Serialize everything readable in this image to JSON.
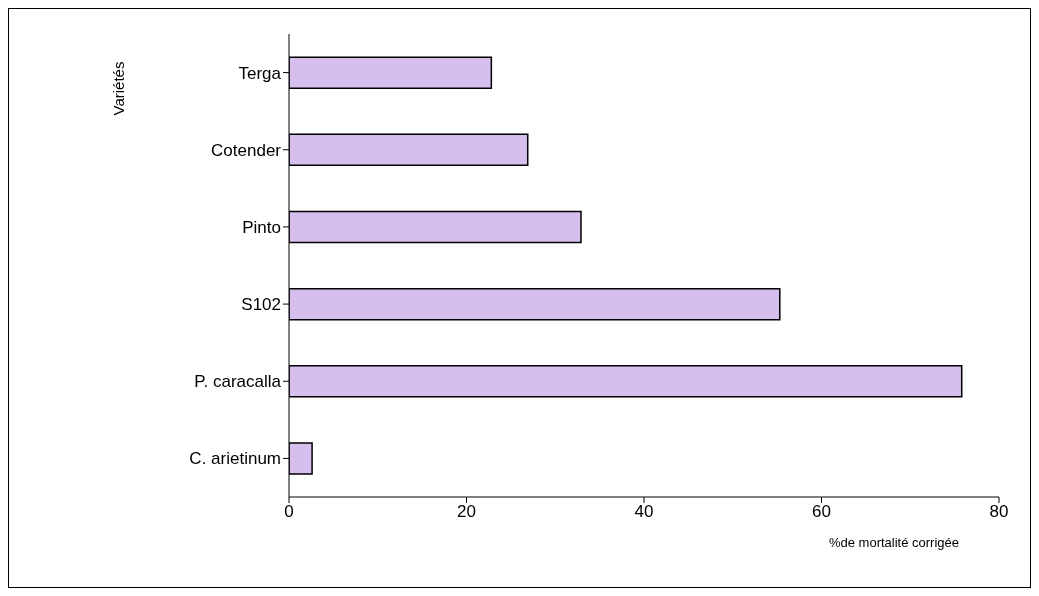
{
  "chart_data": {
    "type": "bar",
    "orientation": "horizontal",
    "ylabel": "Variétés",
    "xlabel": "%de mortalité corrigée",
    "categories": [
      "Terga",
      "Cotender",
      "Pinto",
      "S102",
      "P. caracalla",
      "C. arietinum"
    ],
    "values": [
      22.8,
      26.9,
      32.9,
      55.3,
      75.8,
      2.6
    ],
    "color": "#d6bfee",
    "xlim": [
      0,
      80
    ],
    "xticks": [
      0,
      20,
      40,
      60,
      80
    ],
    "grid": false,
    "legend": false
  }
}
